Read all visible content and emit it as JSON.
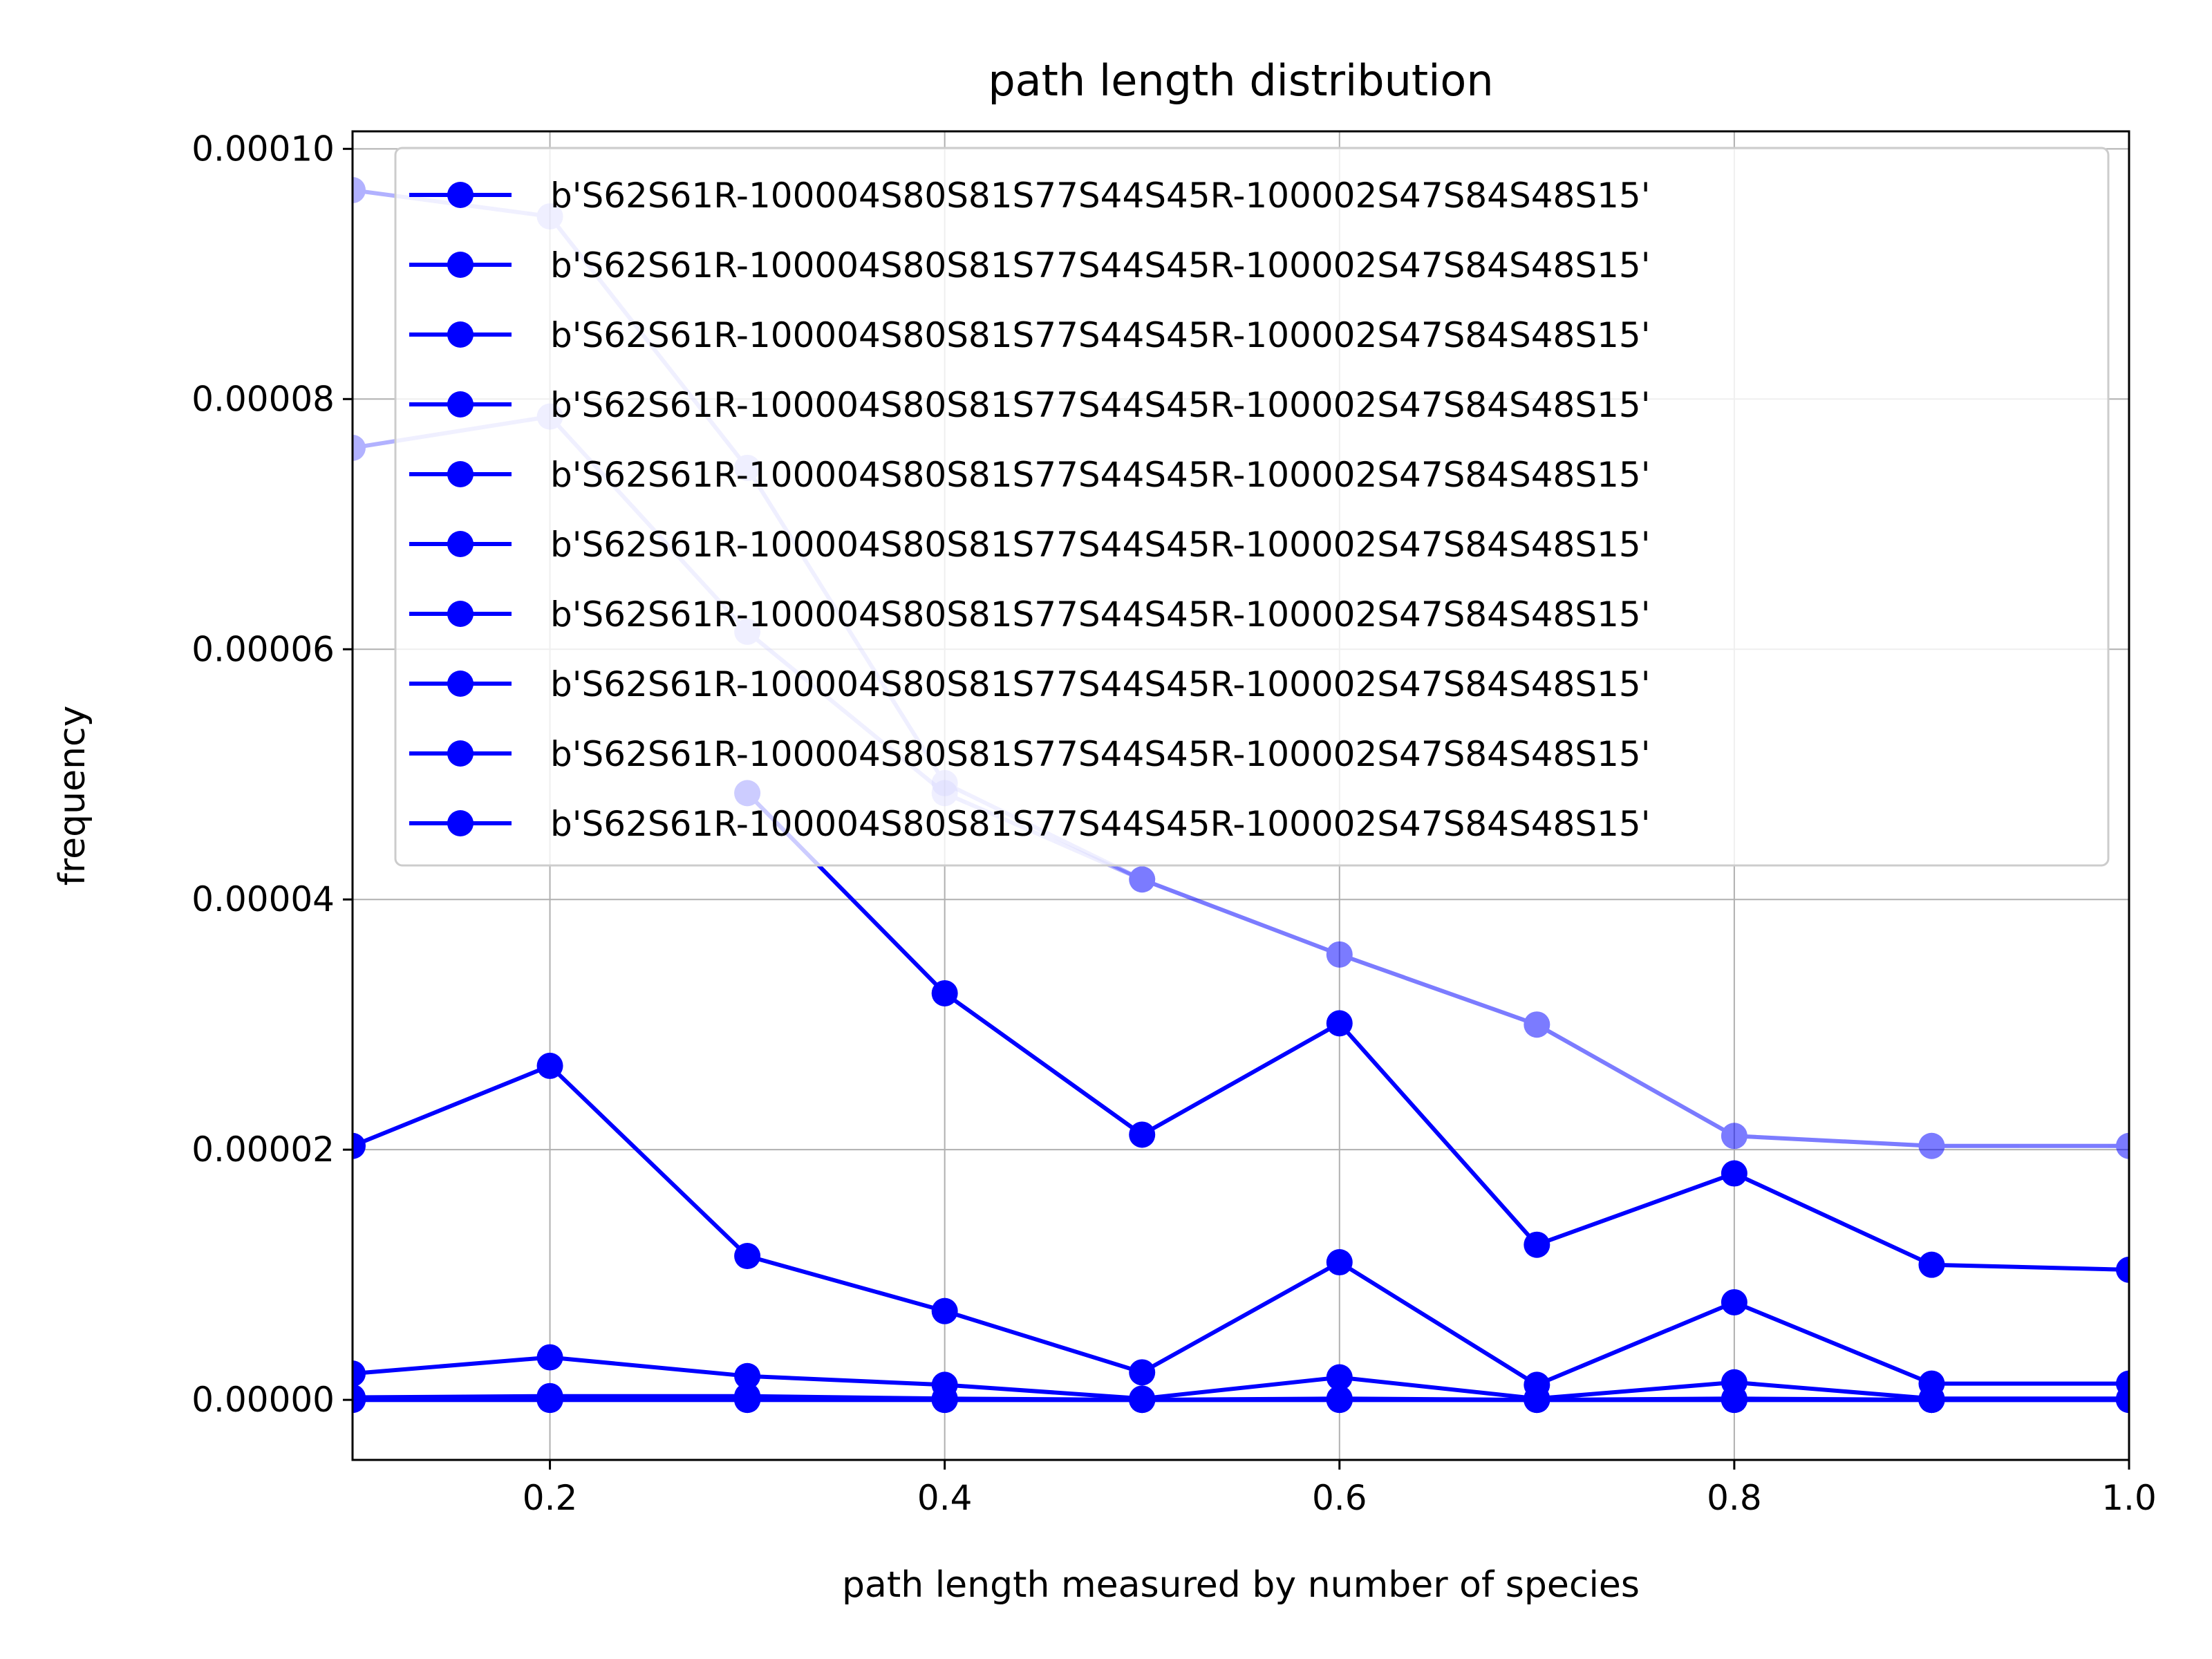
{
  "chart_data": {
    "type": "line",
    "title": "path length distribution",
    "xlabel": "path length measured by number of species",
    "ylabel": "frequency",
    "xlim": [
      0.1,
      1.0
    ],
    "ylim": [
      -4.8e-06,
      0.0001014
    ],
    "xticks": [
      0.2,
      0.4,
      0.6,
      0.8,
      1.0
    ],
    "xtick_labels": [
      "0.2",
      "0.4",
      "0.6",
      "0.8",
      "1.0"
    ],
    "yticks": [
      0,
      2e-05,
      4e-05,
      6e-05,
      8e-05,
      0.0001
    ],
    "ytick_labels": [
      "0.00000",
      "0.00002",
      "0.00004",
      "0.00006",
      "0.00008",
      "0.00010"
    ],
    "grid": true,
    "legend_position": "upper-right",
    "marker": "circle",
    "color": "#0000ff",
    "x": [
      0.1,
      0.2,
      0.3,
      0.4,
      0.5,
      0.6,
      0.7,
      0.8,
      0.9,
      1.0
    ],
    "series": [
      {
        "name": "b'S62S61R-100004S80S81S77S44S45R-100002S47S84S48S15'",
        "opacity": 0.3,
        "values": [
          9.67e-05,
          9.46e-05,
          7.45e-05,
          4.93e-05,
          4.16e-05,
          3.56e-05,
          3e-05,
          2.11e-05,
          2.03e-05,
          2.03e-05
        ]
      },
      {
        "name": "b'S62S61R-100004S80S81S77S44S45R-100002S47S84S48S15'",
        "opacity": 0.3,
        "values": [
          7.61e-05,
          7.86e-05,
          6.14e-05,
          4.85e-05,
          4.16e-05,
          3.56e-05,
          3e-05,
          2.11e-05,
          2.03e-05,
          2.03e-05
        ]
      },
      {
        "name": "b'S62S61R-100004S80S81S77S44S45R-100002S47S84S48S15'",
        "opacity": 1.0,
        "values": [
          2.03e-05,
          2.67e-05,
          1.15e-05,
          7.1e-06,
          2.2e-06,
          1.1e-05,
          1.2e-06,
          7.8e-06,
          1.3e-06,
          1.3e-06
        ]
      },
      {
        "name": "b'S62S61R-100004S80S81S77S44S45R-100002S47S84S48S15'",
        "opacity": 1.0,
        "values": [
          null,
          null,
          4.85e-05,
          3.25e-05,
          2.12e-05,
          3.01e-05,
          1.24e-05,
          1.81e-05,
          1.08e-05,
          1.04e-05
        ]
      },
      {
        "name": "b'S62S61R-100004S80S81S77S44S45R-100002S47S84S48S15'",
        "opacity": 1.0,
        "values": [
          2.1e-06,
          3.4e-06,
          1.9e-06,
          1.2e-06,
          1e-07,
          1.8e-06,
          1e-07,
          1.4e-06,
          1e-07,
          1e-07
        ]
      },
      {
        "name": "b'S62S61R-100004S80S81S77S44S45R-100002S47S84S48S15'",
        "opacity": 1.0,
        "values": [
          2e-07,
          3e-07,
          3e-07,
          1e-07,
          0.0,
          1e-07,
          0.0,
          1e-07,
          0.0,
          0.0
        ]
      },
      {
        "name": "b'S62S61R-100004S80S81S77S44S45R-100002S47S84S48S15'",
        "opacity": 1.0,
        "values": [
          0.0,
          1e-07,
          1e-07,
          0.0,
          0.0,
          0.0,
          0.0,
          0.0,
          0.0,
          0.0
        ]
      },
      {
        "name": "b'S62S61R-100004S80S81S77S44S45R-100002S47S84S48S15'",
        "opacity": 1.0,
        "values": [
          0.0,
          0.0,
          0.0,
          0.0,
          0.0,
          0.0,
          0.0,
          0.0,
          0.0,
          0.0
        ]
      },
      {
        "name": "b'S62S61R-100004S80S81S77S44S45R-100002S47S84S48S15'",
        "opacity": 1.0,
        "values": [
          0.0,
          0.0,
          0.0,
          0.0,
          0.0,
          0.0,
          0.0,
          0.0,
          0.0,
          0.0
        ]
      },
      {
        "name": "b'S62S61R-100004S80S81S77S44S45R-100002S47S84S48S15'",
        "opacity": 1.0,
        "values": [
          0.0,
          0.0,
          0.0,
          0.0,
          0.0,
          0.0,
          0.0,
          0.0,
          0.0,
          0.0
        ]
      }
    ]
  }
}
